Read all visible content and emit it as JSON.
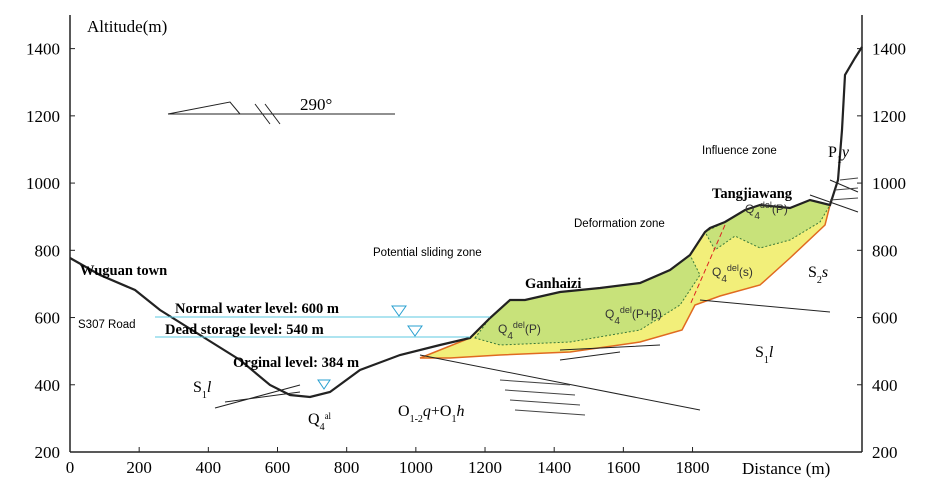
{
  "axes": {
    "y_label": "Altitude(m)",
    "x_label": "Distance (m)",
    "xlim": [
      0,
      2290
    ],
    "ylim": [
      200,
      1500
    ],
    "xticks": [
      0,
      200,
      400,
      600,
      800,
      1000,
      1200,
      1400,
      1600,
      1800
    ],
    "yticks": [
      200,
      400,
      600,
      800,
      1000,
      1200,
      1400
    ]
  },
  "labels": {
    "azimuth": "290°",
    "town": "Wuguan town",
    "road": "S307 Road",
    "normal_level": "Normal water level: 600 m",
    "dead_level": "Dead storage level: 540 m",
    "original_level": "Orginal level: 384 m",
    "sliding_zone": "Potential sliding zone",
    "deformation_zone": "Deformation zone",
    "influence_zone": "Influence zone",
    "ganhaizi": "Ganhaizi",
    "tangjiawang": "Tangjiawang"
  },
  "geo_units": [
    [
      "S",
      "1",
      "l"
    ],
    [
      "Q",
      "4",
      "al"
    ],
    [
      "O",
      "1-2",
      "q",
      "+O",
      "1",
      "h"
    ],
    [
      "Q",
      "4",
      "del",
      "(P)"
    ],
    [
      "Q",
      "4",
      "del",
      "(P+β)"
    ],
    [
      "Q",
      "4",
      "del",
      "(P)"
    ],
    [
      "Q",
      "4",
      "del",
      "(s)"
    ],
    [
      "S",
      "2",
      "s"
    ],
    [
      "S",
      "1",
      "l"
    ],
    [
      "P",
      "1",
      "y"
    ]
  ]
}
